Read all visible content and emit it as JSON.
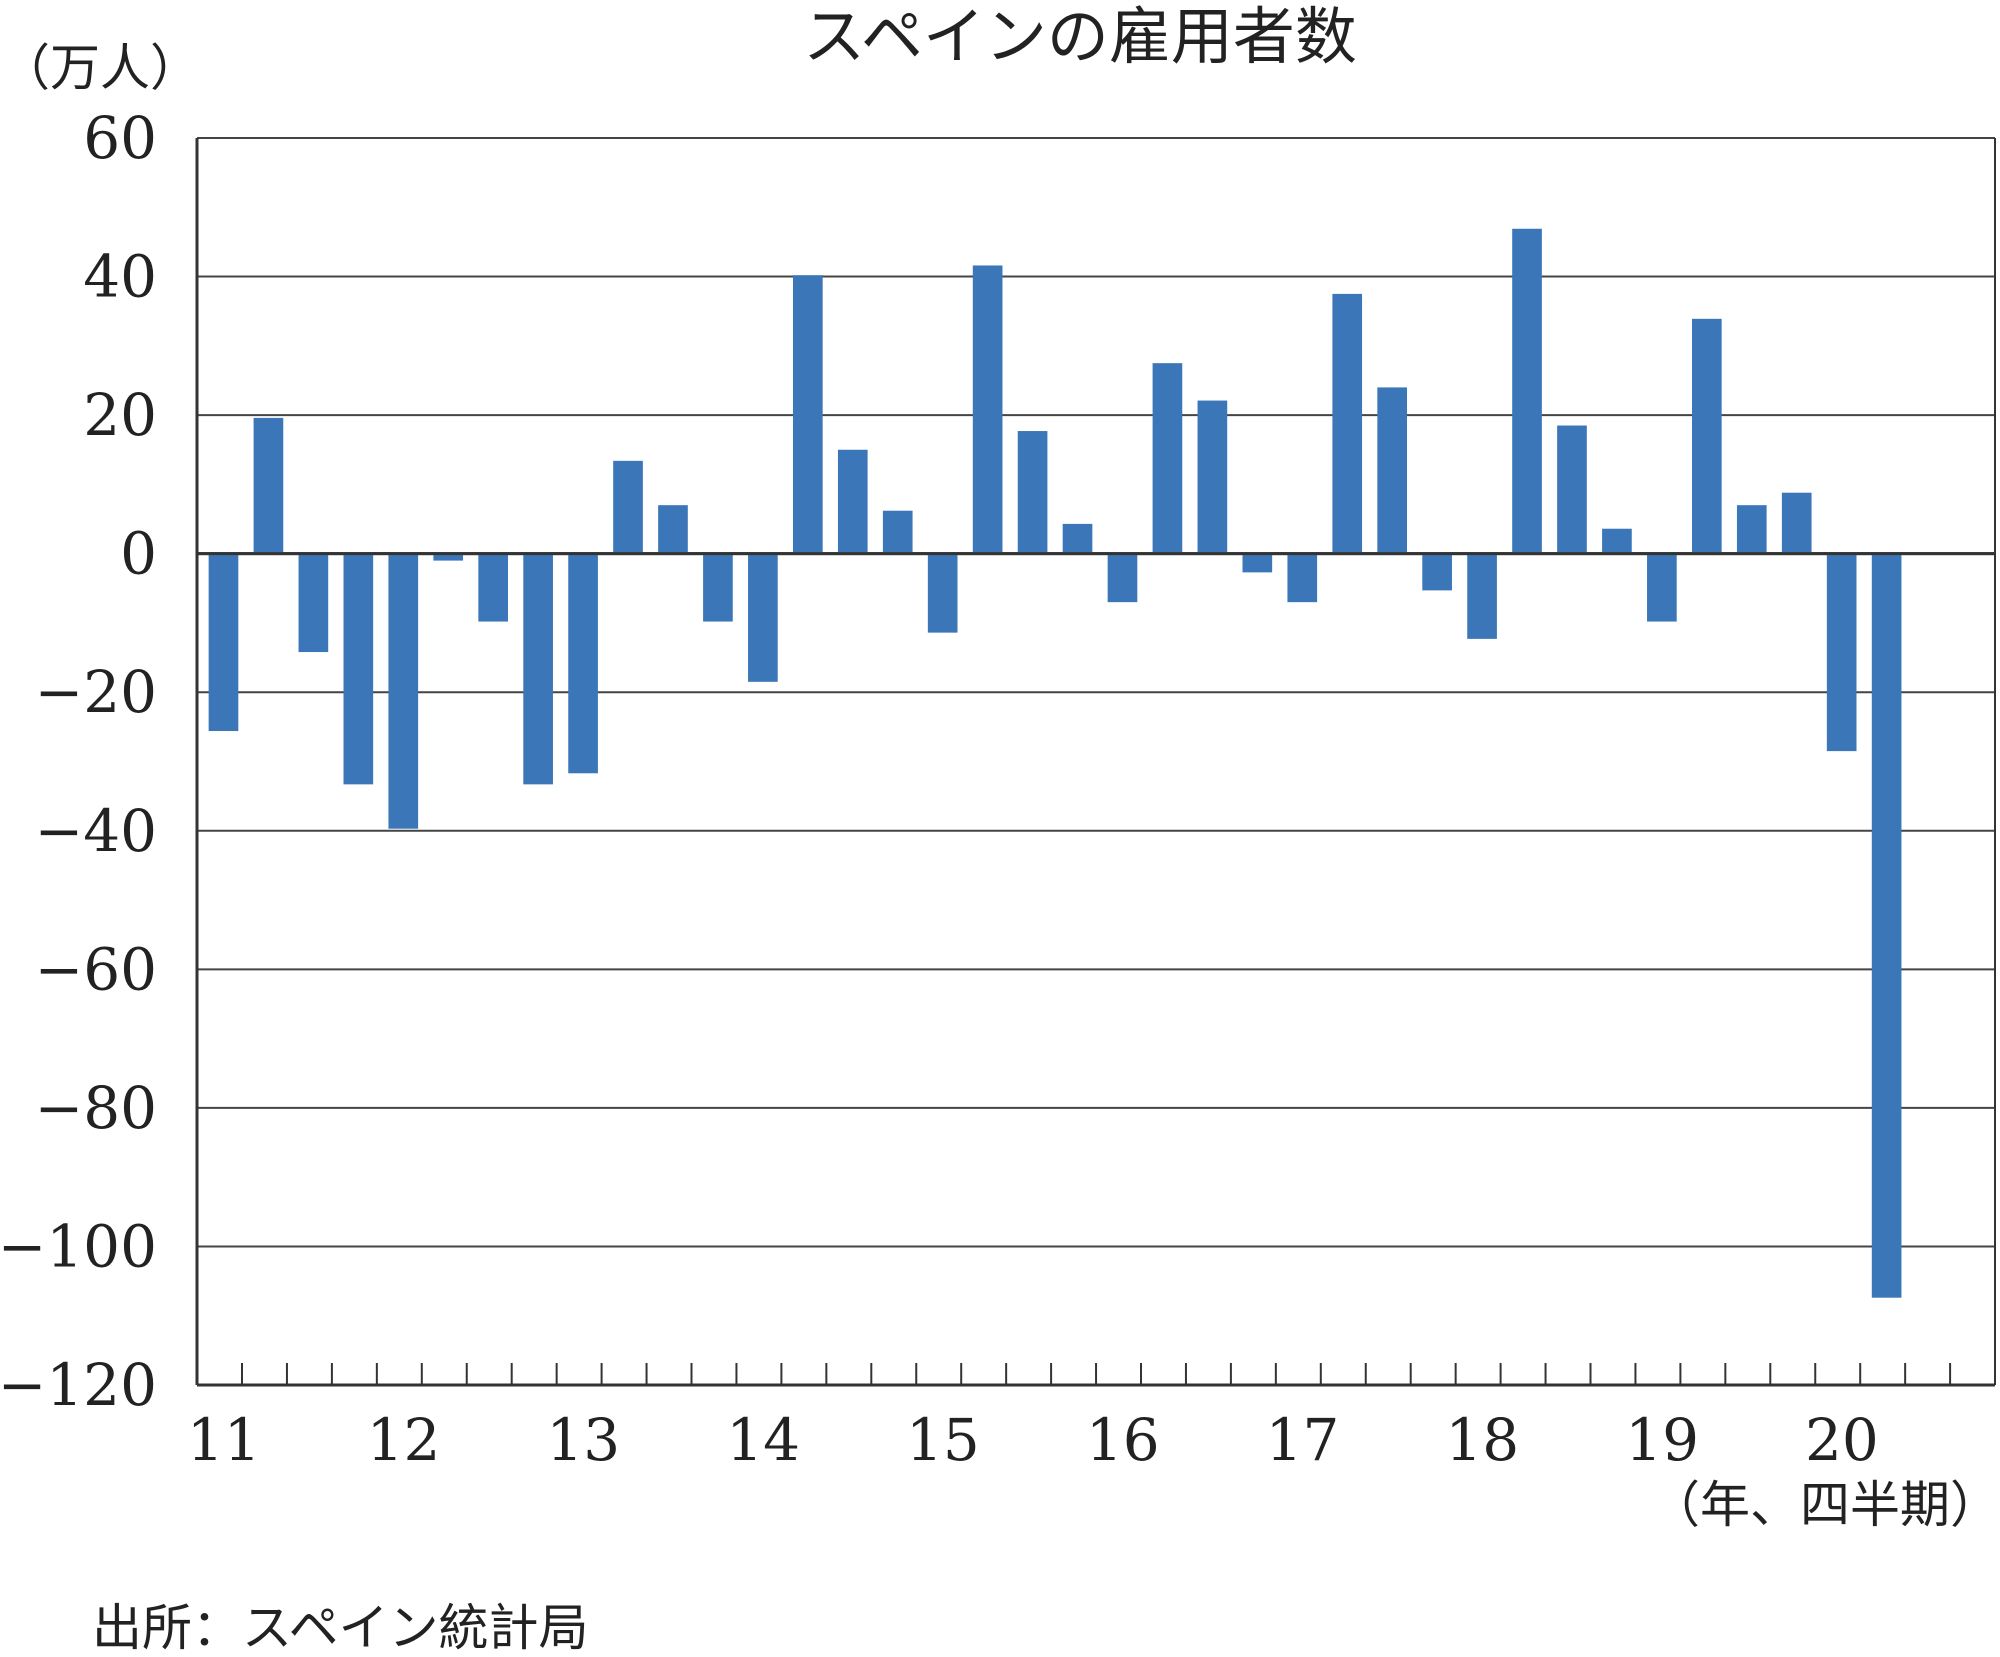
{
  "chart_data": {
    "type": "bar",
    "title": "スペインの雇用者数",
    "ylabel": "（万人）",
    "xlabel": "（年、四半期）",
    "ylim": [
      -120,
      60
    ],
    "yticks": [
      60,
      40,
      20,
      0,
      -20,
      -40,
      -60,
      -80,
      -100,
      -120
    ],
    "ytick_labels": [
      "60",
      "40",
      "20",
      "0",
      "−20",
      "−40",
      "−60",
      "−80",
      "−100",
      "−120"
    ],
    "year_labels": [
      "11",
      "12",
      "13",
      "14",
      "15",
      "16",
      "17",
      "18",
      "19",
      "20"
    ],
    "quarters_per_year": 4,
    "grid": true,
    "bar_color": "#3b77b8",
    "values": [
      -25.6,
      19.6,
      -14.2,
      -33.3,
      -39.7,
      -1.0,
      -9.8,
      -33.3,
      -31.7,
      13.4,
      7.0,
      -9.8,
      -18.5,
      40.2,
      15.0,
      6.2,
      -11.4,
      41.6,
      17.7,
      4.3,
      -7.0,
      27.5,
      22.1,
      -2.7,
      -7.0,
      37.5,
      24.0,
      -5.3,
      -12.3,
      46.9,
      18.5,
      3.6,
      -9.8,
      33.9,
      7.0,
      8.8,
      -28.5,
      -107.4
    ]
  },
  "footer": {
    "source": "出所：スペイン統計局"
  }
}
